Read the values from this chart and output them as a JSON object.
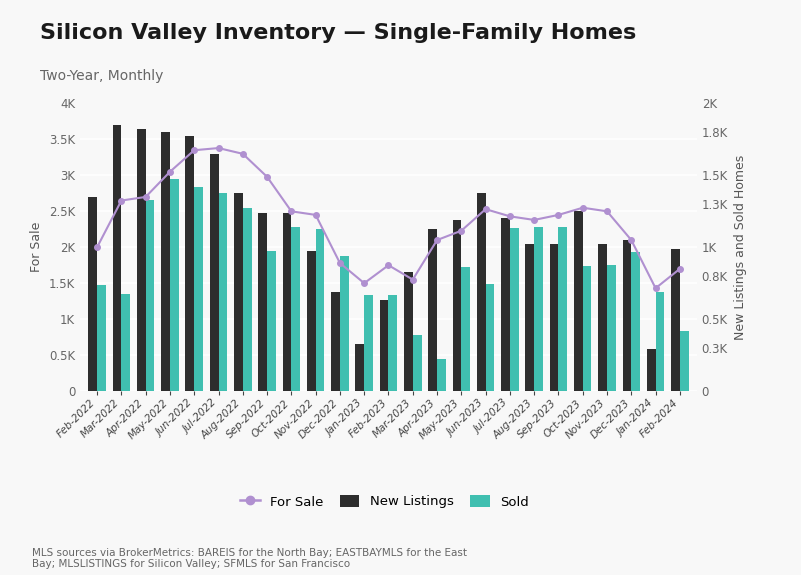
{
  "title": "Silicon Valley Inventory — Single-Family Homes",
  "subtitle": "Two-Year, Monthly",
  "ylabel_left": "For Sale",
  "ylabel_right": "New Listings and Sold Homes",
  "source_text": "MLS sources via BrokerMetrics: BAREIS for the North Bay; EASTBAYMLS for the East\nBay; MLSLISTINGS for Silicon Valley; SFMLS for San Francisco",
  "months": [
    "Feb-2022",
    "Mar-2022",
    "Apr-2022",
    "May-2022",
    "Jun-2022",
    "Jul-2022",
    "Aug-2022",
    "Sep-2022",
    "Oct-2022",
    "Nov-2022",
    "Dec-2022",
    "Jan-2023",
    "Feb-2023",
    "Mar-2023",
    "Apr-2023",
    "May-2023",
    "Jun-2023",
    "Jul-2023",
    "Aug-2023",
    "Sep-2023",
    "Oct-2023",
    "Nov-2023",
    "Dec-2023",
    "Jan-2024",
    "Feb-2024"
  ],
  "new_listings": [
    2700,
    3700,
    3650,
    3600,
    3550,
    3300,
    2750,
    2480,
    2480,
    1950,
    1380,
    650,
    1270,
    1660,
    2250,
    2380,
    2750,
    2400,
    2050,
    2050,
    2500,
    2050,
    2100,
    580,
    1980
  ],
  "sold": [
    1480,
    1350,
    2660,
    2950,
    2840,
    2760,
    2540,
    1950,
    2280,
    2260,
    1880,
    1340,
    1340,
    780,
    450,
    1720,
    1490,
    2270,
    2280,
    2280,
    1740,
    1760,
    1940,
    1380,
    830
  ],
  "for_sale": [
    2000,
    2650,
    2700,
    3050,
    3350,
    3380,
    3300,
    2980,
    2500,
    2450,
    1780,
    1500,
    1750,
    1550,
    2100,
    2230,
    2530,
    2430,
    2380,
    2450,
    2550,
    2500,
    2100,
    1430,
    1700
  ],
  "bar_color_dark": "#2d2d2d",
  "bar_color_teal": "#40bfb0",
  "line_color": "#b090d0",
  "background_color": "#f8f8f8",
  "ylim_left": [
    0,
    4000
  ],
  "ylim_right": [
    0,
    2000
  ],
  "yticks_left": [
    0,
    500,
    1000,
    1500,
    2000,
    2500,
    3000,
    3500,
    4000
  ],
  "yticks_right": [
    0,
    300,
    500,
    800,
    1000,
    1300,
    1500,
    1800,
    2000
  ],
  "legend_labels": [
    "For Sale",
    "New Listings",
    "Sold"
  ],
  "title_fontsize": 16,
  "subtitle_fontsize": 10
}
